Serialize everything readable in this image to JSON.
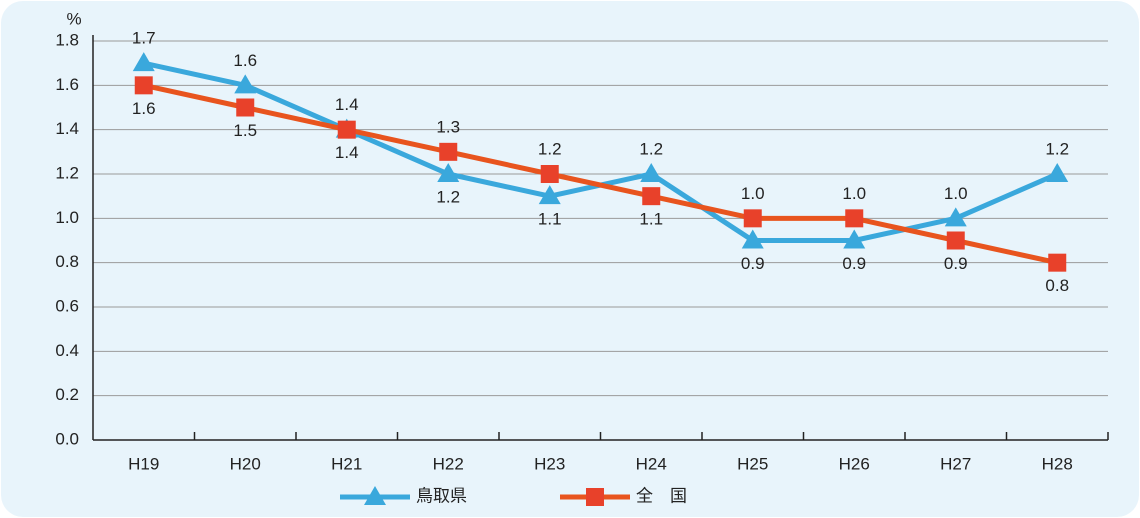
{
  "chart_data": {
    "type": "line",
    "y_unit": "%",
    "categories": [
      "H19",
      "H20",
      "H21",
      "H22",
      "H23",
      "H24",
      "H25",
      "H26",
      "H27",
      "H28"
    ],
    "series": [
      {
        "name": "鳥取県",
        "color": "#3aa8dc",
        "marker": "triangle",
        "values": [
          1.7,
          1.6,
          1.4,
          1.2,
          1.1,
          1.2,
          0.9,
          0.9,
          1.0,
          1.2
        ],
        "value_labels": [
          "1.7",
          "1.6",
          "1.4",
          "1.2",
          "1.1",
          "1.2",
          "0.9",
          "0.9",
          "1.0",
          "1.2"
        ]
      },
      {
        "name": "全　国",
        "color": "#e8541e",
        "marker": "square",
        "values": [
          1.6,
          1.5,
          1.4,
          1.3,
          1.2,
          1.1,
          1.0,
          1.0,
          0.9,
          0.8
        ],
        "value_labels": [
          "1.6",
          "1.5",
          "1.4",
          "1.3",
          "1.2",
          "1.1",
          "1.0",
          "1.0",
          "0.9",
          "0.8"
        ]
      }
    ],
    "ylim": [
      0,
      1.8
    ],
    "yticks": [
      {
        "value": 0,
        "label": "0.0"
      },
      0.2,
      0.4,
      0.6,
      0.8,
      {
        "value": 1,
        "label": "1.0"
      },
      1.2,
      1.4,
      1.6,
      1.8
    ],
    "grid": true,
    "legend": "bottom"
  }
}
